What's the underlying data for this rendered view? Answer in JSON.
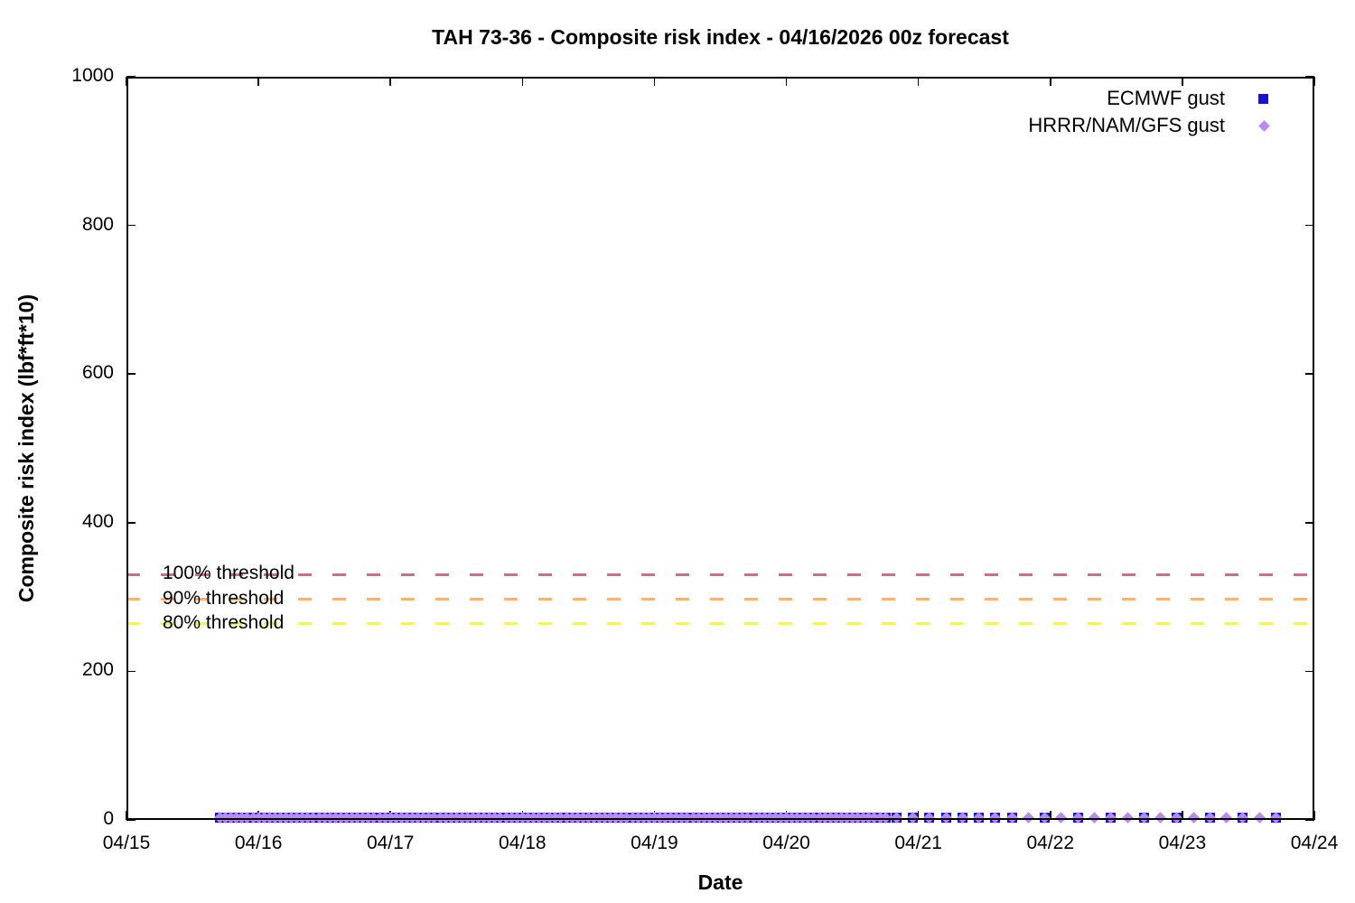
{
  "chart_data": {
    "type": "scatter",
    "title": "TAH 73-36 - Composite risk index - 04/16/2026 00z forecast",
    "xlabel": "Date",
    "ylabel": "Composite risk index (lbf*ft*10)",
    "x_ticks": [
      "04/15",
      "04/16",
      "04/17",
      "04/18",
      "04/19",
      "04/20",
      "04/21",
      "04/22",
      "04/23",
      "04/24"
    ],
    "x_span_days": 9,
    "ylim": [
      0,
      1000
    ],
    "y_ticks": [
      0,
      200,
      400,
      600,
      800,
      1000
    ],
    "grid": false,
    "legend_position": "inside-top-right",
    "series": [
      {
        "name": "ECMWF gust",
        "marker": "square",
        "color": "#1a12d2",
        "value": 0,
        "segments": [
          {
            "start_day": 0.7083,
            "end_day": 5.75,
            "step_hours": 1
          },
          {
            "start_day": 5.8333,
            "end_day": 6.7083,
            "step_hours": 3
          },
          {
            "start_day": 6.9583,
            "end_day": 8.7083,
            "step_hours": 6
          }
        ]
      },
      {
        "name": "HRRR/NAM/GFS gust",
        "marker": "diamond",
        "color": "#b98af0",
        "value": 0,
        "segments": [
          {
            "start_day": 0.7083,
            "end_day": 5.75,
            "step_hours": 1
          },
          {
            "start_day": 5.8333,
            "end_day": 8.7083,
            "step_hours": 3
          }
        ]
      }
    ],
    "thresholds": [
      {
        "label": "100% threshold",
        "value": 330,
        "color": "#db6882"
      },
      {
        "label": "90% threshold",
        "value": 297,
        "color": "#f6b377"
      },
      {
        "label": "80% threshold",
        "value": 264,
        "color": "#ffff00"
      }
    ]
  }
}
